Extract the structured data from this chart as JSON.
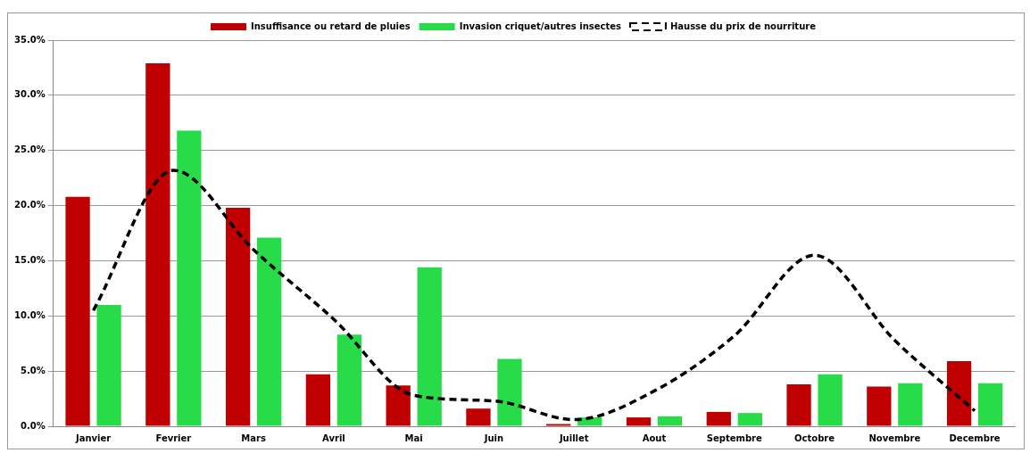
{
  "chart_data": {
    "type": "bar",
    "categories": [
      "Janvier",
      "Fevrier",
      "Mars",
      "Avril",
      "Mai",
      "Juin",
      "Juillet",
      "Aout",
      "Septembre",
      "Octobre",
      "Novembre",
      "Decembre"
    ],
    "series": [
      {
        "name": "Insuffisance ou retard de pluies",
        "color": "#c00000",
        "values": [
          20.8,
          32.9,
          19.8,
          4.7,
          3.7,
          1.6,
          0.2,
          0.8,
          1.3,
          3.8,
          3.6,
          5.9
        ]
      },
      {
        "name": "Invasion criquet/autres insectes",
        "color": "#27dc48",
        "values": [
          11.0,
          26.8,
          17.1,
          8.3,
          14.4,
          6.1,
          0.8,
          0.9,
          1.2,
          4.7,
          3.9,
          3.9
        ]
      },
      {
        "name": "Hausse du prix de nourriture",
        "type": "line",
        "color": "#000000",
        "line_style": "dashed",
        "marker": "none",
        "values": [
          10.5,
          23.2,
          16.0,
          9.7,
          2.8,
          2.3,
          0.6,
          3.2,
          8.2,
          15.5,
          7.8,
          1.4
        ]
      }
    ],
    "ylim": [
      0,
      35
    ],
    "yticks": [
      {
        "value": 0,
        "label": "0.0%"
      },
      {
        "value": 5,
        "label": "5.0%"
      },
      {
        "value": 10,
        "label": "10.0%"
      },
      {
        "value": 15,
        "label": "15.0%"
      },
      {
        "value": 20,
        "label": "20.0%"
      },
      {
        "value": 25,
        "label": "25.0%"
      },
      {
        "value": 30,
        "label": "30.0%"
      },
      {
        "value": 35,
        "label": "35.0%"
      }
    ],
    "grid": "y",
    "legend": "top"
  }
}
